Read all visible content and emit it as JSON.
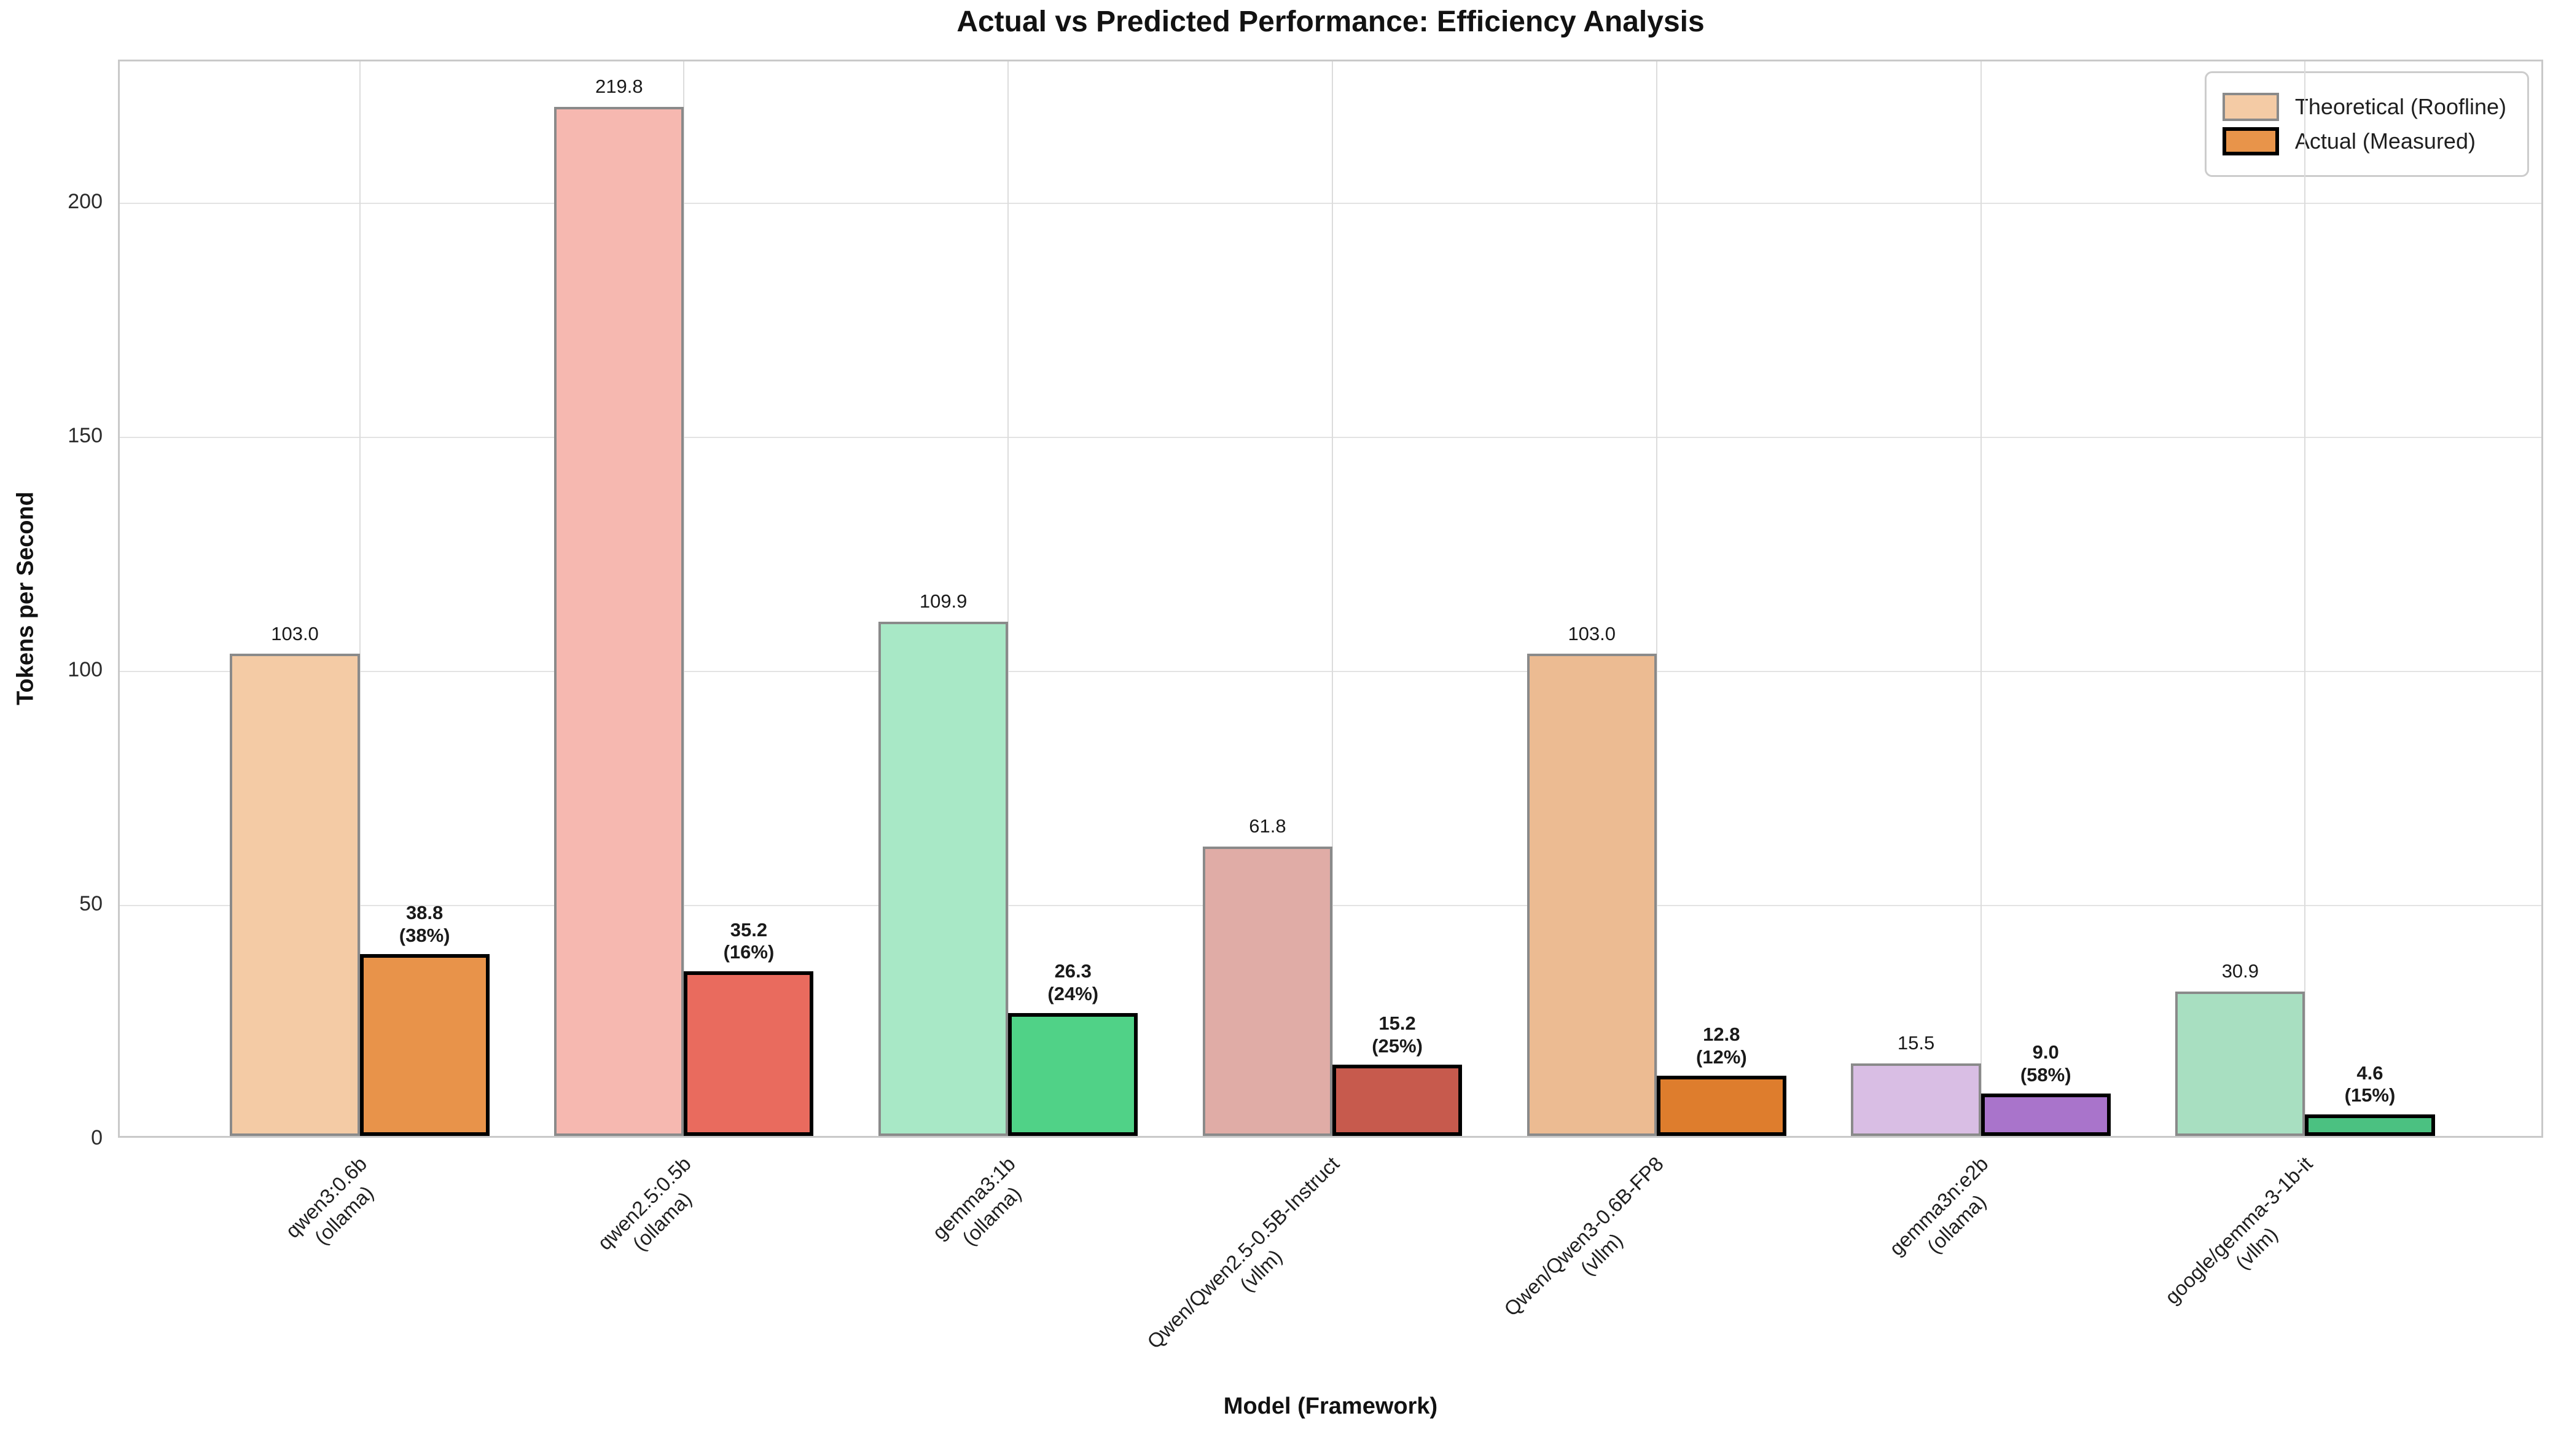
{
  "chart_data": {
    "type": "bar",
    "title": "Actual vs Predicted Performance: Efficiency Analysis",
    "xlabel": "Model (Framework)",
    "ylabel": "Tokens per Second",
    "ylim": [
      0,
      230.3
    ],
    "yticks": [
      0,
      50,
      100,
      150,
      200
    ],
    "grid": true,
    "legend_position": "upper right",
    "categories": [
      {
        "model": "qwen3:0.6b",
        "framework": "(ollama)"
      },
      {
        "model": "qwen2.5:0.5b",
        "framework": "(ollama)"
      },
      {
        "model": "gemma3:1b",
        "framework": "(ollama)"
      },
      {
        "model": "Qwen/Qwen2.5-0.5B-Instruct",
        "framework": "(vllm)"
      },
      {
        "model": "Qwen/Qwen3-0.6B-FP8",
        "framework": "(vllm)"
      },
      {
        "model": "gemma3n:e2b",
        "framework": "(ollama)"
      },
      {
        "model": "google/gemma-3-1b-it",
        "framework": "(vllm)"
      }
    ],
    "series": [
      {
        "name": "Theoretical (Roofline)",
        "values": [
          103.0,
          219.8,
          109.9,
          61.8,
          103.0,
          15.5,
          30.9
        ],
        "value_labels": [
          "103.0",
          "219.8",
          "109.9",
          "61.8",
          "103.0",
          "15.5",
          "30.9"
        ],
        "colors": [
          "#F4CBA5",
          "#F6B8B0",
          "#A8E8C6",
          "#E0ACA6",
          "#ECBB92",
          "#D9BEE4",
          "#A8DFC1"
        ],
        "edge_color": "#8a8a8a",
        "legend_swatch_color": "#F4CBA5"
      },
      {
        "name": "Actual (Measured)",
        "values": [
          38.8,
          35.2,
          26.3,
          15.2,
          12.8,
          9.0,
          4.6
        ],
        "value_labels": [
          "38.8",
          "35.2",
          "26.3",
          "15.2",
          "12.8",
          "9.0",
          "4.6"
        ],
        "efficiency_pct": [
          "(38%)",
          "(16%)",
          "(24%)",
          "(25%)",
          "(12%)",
          "(58%)",
          "(15%)"
        ],
        "colors": [
          "#E8934A",
          "#E96B5E",
          "#50D287",
          "#C75A4D",
          "#DE7D2D",
          "#A974CB",
          "#4BC181"
        ],
        "edge_color": "#000000",
        "legend_swatch_color": "#E8944A"
      }
    ]
  }
}
